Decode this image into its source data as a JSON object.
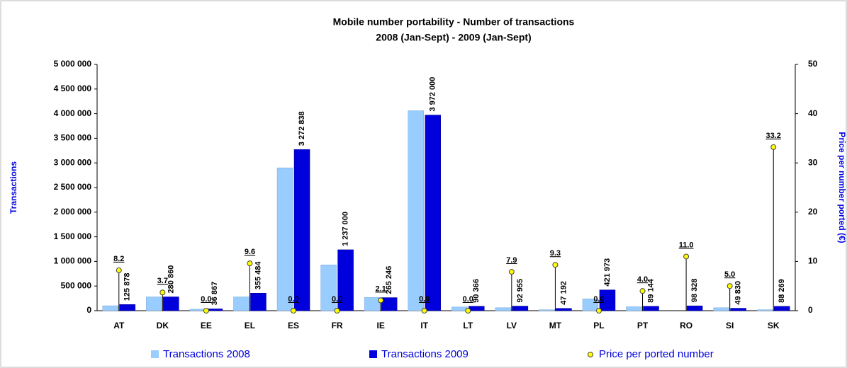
{
  "chart_data": {
    "type": "bar",
    "title": "Mobile number portability - Number of transactions",
    "subtitle": "2008 (Jan-Sept) - 2009 (Jan-Sept)",
    "ylabel": "Transactions",
    "y2label": "Price per number ported (€)",
    "categories": [
      "AT",
      "DK",
      "EE",
      "EL",
      "ES",
      "FR",
      "IE",
      "IT",
      "LT",
      "LV",
      "MT",
      "PL",
      "PT",
      "RO",
      "SI",
      "SK"
    ],
    "series": [
      {
        "name": "Transactions 2008",
        "color": "#99ccff",
        "values": [
          100000,
          280000,
          30000,
          280000,
          2900000,
          930000,
          270000,
          4060000,
          75000,
          60000,
          20000,
          240000,
          80000,
          null,
          60000,
          20000
        ]
      },
      {
        "name": "Transactions 2009",
        "color": "#0000dd",
        "values": [
          125878,
          280860,
          36867,
          355484,
          3272838,
          1237000,
          265246,
          3972000,
          90366,
          92955,
          47192,
          421973,
          89144,
          98328,
          49830,
          88269
        ],
        "value_labels": [
          "125 878",
          "280 860",
          "36 867",
          "355 484",
          "3 272 838",
          "1 237 000",
          "265 246",
          "3 972 000",
          "90 366",
          "92 955",
          "47 192",
          "421 973",
          "89 144",
          "98 328",
          "49 830",
          "88 269"
        ]
      },
      {
        "name": "Price per ported number",
        "color": "#ffff00",
        "axis": "y2",
        "values": [
          8.2,
          3.7,
          0,
          9.6,
          0,
          0,
          2.1,
          0,
          0,
          7.9,
          9.3,
          0,
          4,
          11,
          5,
          33.2
        ],
        "value_labels": [
          "8.2",
          "3.7",
          "0.0",
          "9.6",
          "0.0",
          "0.0",
          "2.1",
          "0.0",
          "0.0",
          "7.9",
          "9.3",
          "0.0",
          "4.0",
          "11.0",
          "5.0",
          "33.2"
        ]
      }
    ],
    "ylim": [
      0,
      5000000
    ],
    "yticks": [
      0,
      {
        "value": 500000,
        "label": "500 000"
      },
      {
        "value": 1000000,
        "label": "1 000 000"
      },
      {
        "value": 1500000,
        "label": "1 500 000"
      },
      {
        "value": 2000000,
        "label": "2 000 000"
      },
      {
        "value": 2500000,
        "label": "2 500 000"
      },
      {
        "value": 3000000,
        "label": "3 000 000"
      },
      {
        "value": 3500000,
        "label": "3 500 000"
      },
      {
        "value": 4000000,
        "label": "4 000 000"
      },
      {
        "value": 4500000,
        "label": "4 500 000"
      },
      {
        "value": 5000000,
        "label": "5 000 000"
      }
    ],
    "y2lim": [
      0,
      50
    ],
    "y2ticks": [
      0,
      10,
      20,
      30,
      40,
      50
    ]
  }
}
